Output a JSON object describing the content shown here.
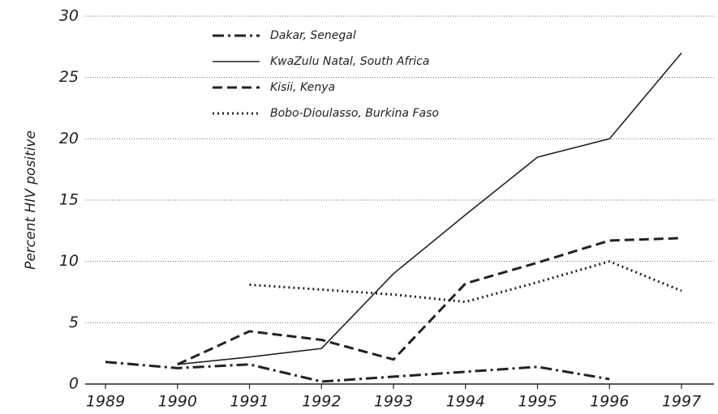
{
  "chart_data": {
    "type": "line",
    "y_label": "Percent HIV positive",
    "categories": [
      "1989",
      "1990",
      "1991",
      "1992",
      "1993",
      "1994",
      "1995",
      "1996",
      "1997"
    ],
    "series": [
      {
        "name": "Dakar, Senegal",
        "color": "#222222",
        "style": "dash-dot",
        "values": [
          1.8,
          1.3,
          1.6,
          0.2,
          0.6,
          1.0,
          1.4,
          0.4,
          null
        ]
      },
      {
        "name": "KwaZulu Natal, South Africa",
        "color": "#222222",
        "style": "solid",
        "values": [
          null,
          1.6,
          2.2,
          2.9,
          9.0,
          13.8,
          18.5,
          20.0,
          27.0
        ]
      },
      {
        "name": "Kisii, Kenya",
        "color": "#222222",
        "style": "dashed",
        "values": [
          null,
          1.6,
          4.3,
          3.6,
          2.0,
          8.2,
          9.9,
          11.7,
          11.9
        ]
      },
      {
        "name": "Bobo-Dioulasso, Burkina Faso",
        "color": "#222222",
        "style": "dotted",
        "values": [
          null,
          null,
          8.1,
          7.7,
          7.3,
          6.7,
          8.3,
          10.0,
          7.6
        ]
      }
    ],
    "ylim": [
      0,
      30
    ],
    "yticks": [
      0,
      5,
      10,
      15,
      20,
      25,
      30
    ],
    "grid": true
  }
}
